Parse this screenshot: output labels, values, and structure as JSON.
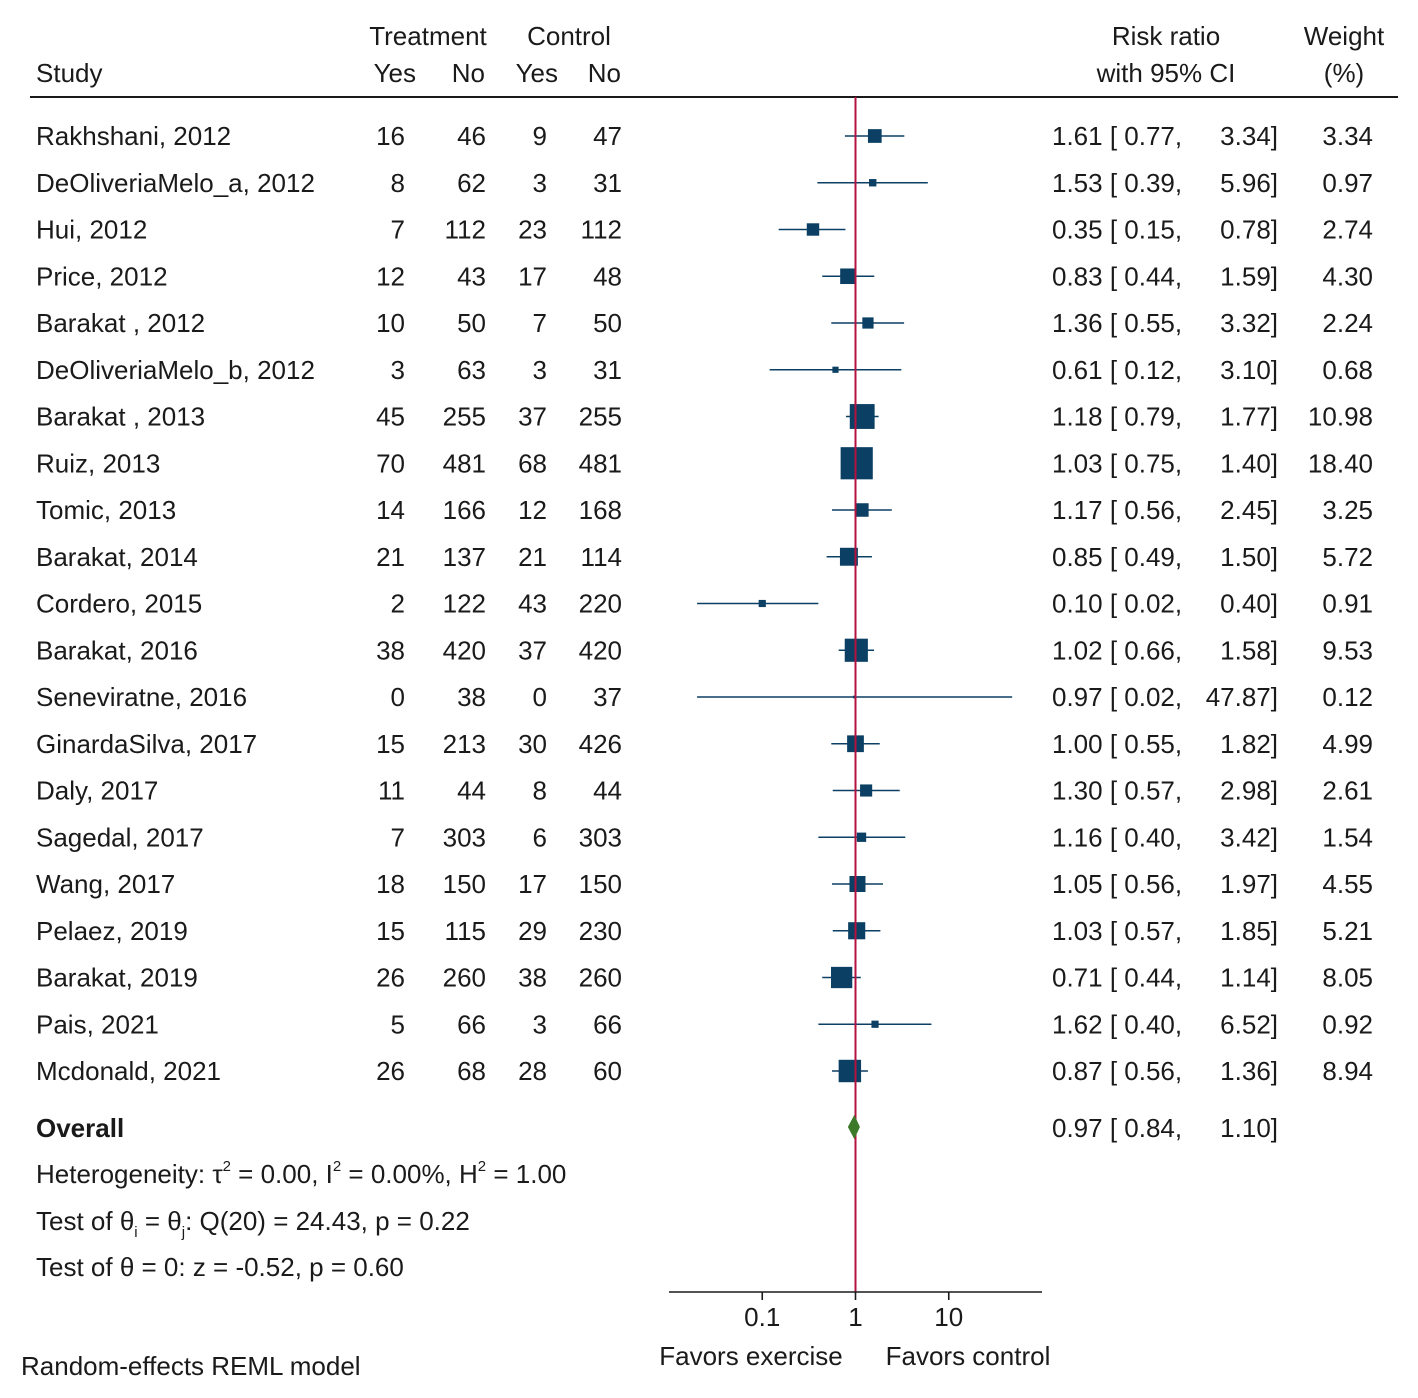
{
  "chart_data": {
    "type": "forest",
    "headers": {
      "study": "Study",
      "treatment": "Treatment",
      "control": "Control",
      "yes": "Yes",
      "no": "No",
      "rr_line1": "Risk ratio",
      "rr_line2": "with 95% CI",
      "weight_line1": "Weight",
      "weight_line2": "(%)"
    },
    "studies": [
      {
        "name": "Rakhshani, 2012",
        "t_yes": "16",
        "t_no": "46",
        "c_yes": "9",
        "c_no": "47",
        "rr": 1.61,
        "lo": 0.77,
        "hi": 3.34,
        "rr_text": "1.61 [ 0.77,",
        "hi_text": "3.34]",
        "weight": "3.34"
      },
      {
        "name": "DeOliveriaMelo_a, 2012",
        "t_yes": "8",
        "t_no": "62",
        "c_yes": "3",
        "c_no": "31",
        "rr": 1.53,
        "lo": 0.39,
        "hi": 5.96,
        "rr_text": "1.53 [ 0.39,",
        "hi_text": "5.96]",
        "weight": "0.97"
      },
      {
        "name": "Hui, 2012",
        "t_yes": "7",
        "t_no": "112",
        "c_yes": "23",
        "c_no": "112",
        "rr": 0.35,
        "lo": 0.15,
        "hi": 0.78,
        "rr_text": "0.35 [ 0.15,",
        "hi_text": "0.78]",
        "weight": "2.74"
      },
      {
        "name": "Price, 2012",
        "t_yes": "12",
        "t_no": "43",
        "c_yes": "17",
        "c_no": "48",
        "rr": 0.83,
        "lo": 0.44,
        "hi": 1.59,
        "rr_text": "0.83 [ 0.44,",
        "hi_text": "1.59]",
        "weight": "4.30"
      },
      {
        "name": "Barakat , 2012",
        "t_yes": "10",
        "t_no": "50",
        "c_yes": "7",
        "c_no": "50",
        "rr": 1.36,
        "lo": 0.55,
        "hi": 3.32,
        "rr_text": "1.36 [ 0.55,",
        "hi_text": "3.32]",
        "weight": "2.24"
      },
      {
        "name": "DeOliveriaMelo_b, 2012",
        "t_yes": "3",
        "t_no": "63",
        "c_yes": "3",
        "c_no": "31",
        "rr": 0.61,
        "lo": 0.12,
        "hi": 3.1,
        "rr_text": "0.61 [ 0.12,",
        "hi_text": "3.10]",
        "weight": "0.68"
      },
      {
        "name": "Barakat , 2013",
        "t_yes": "45",
        "t_no": "255",
        "c_yes": "37",
        "c_no": "255",
        "rr": 1.18,
        "lo": 0.79,
        "hi": 1.77,
        "rr_text": "1.18 [ 0.79,",
        "hi_text": "1.77]",
        "weight": "10.98"
      },
      {
        "name": "Ruiz, 2013",
        "t_yes": "70",
        "t_no": "481",
        "c_yes": "68",
        "c_no": "481",
        "rr": 1.03,
        "lo": 0.75,
        "hi": 1.4,
        "rr_text": "1.03 [ 0.75,",
        "hi_text": "1.40]",
        "weight": "18.40"
      },
      {
        "name": "Tomic, 2013",
        "t_yes": "14",
        "t_no": "166",
        "c_yes": "12",
        "c_no": "168",
        "rr": 1.17,
        "lo": 0.56,
        "hi": 2.45,
        "rr_text": "1.17 [ 0.56,",
        "hi_text": "2.45]",
        "weight": "3.25"
      },
      {
        "name": "Barakat, 2014",
        "t_yes": "21",
        "t_no": "137",
        "c_yes": "21",
        "c_no": "114",
        "rr": 0.85,
        "lo": 0.49,
        "hi": 1.5,
        "rr_text": "0.85 [ 0.49,",
        "hi_text": "1.50]",
        "weight": "5.72"
      },
      {
        "name": "Cordero, 2015",
        "t_yes": "2",
        "t_no": "122",
        "c_yes": "43",
        "c_no": "220",
        "rr": 0.1,
        "lo": 0.02,
        "hi": 0.4,
        "rr_text": "0.10 [ 0.02,",
        "hi_text": "0.40]",
        "weight": "0.91"
      },
      {
        "name": "Barakat, 2016",
        "t_yes": "38",
        "t_no": "420",
        "c_yes": "37",
        "c_no": "420",
        "rr": 1.02,
        "lo": 0.66,
        "hi": 1.58,
        "rr_text": "1.02 [ 0.66,",
        "hi_text": "1.58]",
        "weight": "9.53"
      },
      {
        "name": "Seneviratne, 2016",
        "t_yes": "0",
        "t_no": "38",
        "c_yes": "0",
        "c_no": "37",
        "rr": 0.97,
        "lo": 0.02,
        "hi": 47.87,
        "rr_text": "0.97 [ 0.02,",
        "hi_text": "47.87]",
        "weight": "0.12"
      },
      {
        "name": "GinardaSilva, 2017",
        "t_yes": "15",
        "t_no": "213",
        "c_yes": "30",
        "c_no": "426",
        "rr": 1.0,
        "lo": 0.55,
        "hi": 1.82,
        "rr_text": "1.00 [ 0.55,",
        "hi_text": "1.82]",
        "weight": "4.99"
      },
      {
        "name": "Daly, 2017",
        "t_yes": "11",
        "t_no": "44",
        "c_yes": "8",
        "c_no": "44",
        "rr": 1.3,
        "lo": 0.57,
        "hi": 2.98,
        "rr_text": "1.30 [ 0.57,",
        "hi_text": "2.98]",
        "weight": "2.61"
      },
      {
        "name": "Sagedal, 2017",
        "t_yes": "7",
        "t_no": "303",
        "c_yes": "6",
        "c_no": "303",
        "rr": 1.16,
        "lo": 0.4,
        "hi": 3.42,
        "rr_text": "1.16 [ 0.40,",
        "hi_text": "3.42]",
        "weight": "1.54"
      },
      {
        "name": "Wang, 2017",
        "t_yes": "18",
        "t_no": "150",
        "c_yes": "17",
        "c_no": "150",
        "rr": 1.05,
        "lo": 0.56,
        "hi": 1.97,
        "rr_text": "1.05 [ 0.56,",
        "hi_text": "1.97]",
        "weight": "4.55"
      },
      {
        "name": "Pelaez, 2019",
        "t_yes": "15",
        "t_no": "115",
        "c_yes": "29",
        "c_no": "230",
        "rr": 1.03,
        "lo": 0.57,
        "hi": 1.85,
        "rr_text": "1.03 [ 0.57,",
        "hi_text": "1.85]",
        "weight": "5.21"
      },
      {
        "name": "Barakat, 2019",
        "t_yes": "26",
        "t_no": "260",
        "c_yes": "38",
        "c_no": "260",
        "rr": 0.71,
        "lo": 0.44,
        "hi": 1.14,
        "rr_text": "0.71 [ 0.44,",
        "hi_text": "1.14]",
        "weight": "8.05"
      },
      {
        "name": "Pais, 2021",
        "t_yes": "5",
        "t_no": "66",
        "c_yes": "3",
        "c_no": "66",
        "rr": 1.62,
        "lo": 0.4,
        "hi": 6.52,
        "rr_text": "1.62 [ 0.40,",
        "hi_text": "6.52]",
        "weight": "0.92"
      },
      {
        "name": "Mcdonald, 2021",
        "t_yes": "26",
        "t_no": "68",
        "c_yes": "28",
        "c_no": "60",
        "rr": 0.87,
        "lo": 0.56,
        "hi": 1.36,
        "rr_text": "0.87 [ 0.56,",
        "hi_text": "1.36]",
        "weight": "8.94"
      }
    ],
    "overall": {
      "label": "Overall",
      "rr": 0.97,
      "lo": 0.84,
      "hi": 1.1,
      "rr_text": "0.97 [ 0.84,",
      "hi_text": "1.10]"
    },
    "heterogeneity": {
      "prefix": "Heterogeneity: τ",
      "tau_tail": " = 0.00, I",
      "i_tail": " = 0.00%, H",
      "h_tail": " = 1.00",
      "sup": "2"
    },
    "test_equal": {
      "prefix": "Test of θ",
      "sub_i": "i",
      "mid": " = θ",
      "sub_j": "j",
      "tail": ": Q(20) = 24.43, p = 0.22"
    },
    "test_zero": "Test of θ = 0: z = -0.52, p = 0.60",
    "x_axis": {
      "scale": "log",
      "ticks": [
        0.1,
        1,
        10
      ],
      "tick_labels": [
        "0.1",
        "1",
        "10"
      ],
      "xlim": [
        0.01,
        100
      ],
      "null_line": 1
    },
    "favors_left": "Favors exercise",
    "favors_right": "Favors control",
    "model_note": "Random-effects REML model",
    "colors": {
      "marker": "#0b3f63",
      "ci": "#0b3f63",
      "null_line": "#b5123f",
      "diamond": "#3c7a2a",
      "text": "#1a1a1a"
    }
  }
}
